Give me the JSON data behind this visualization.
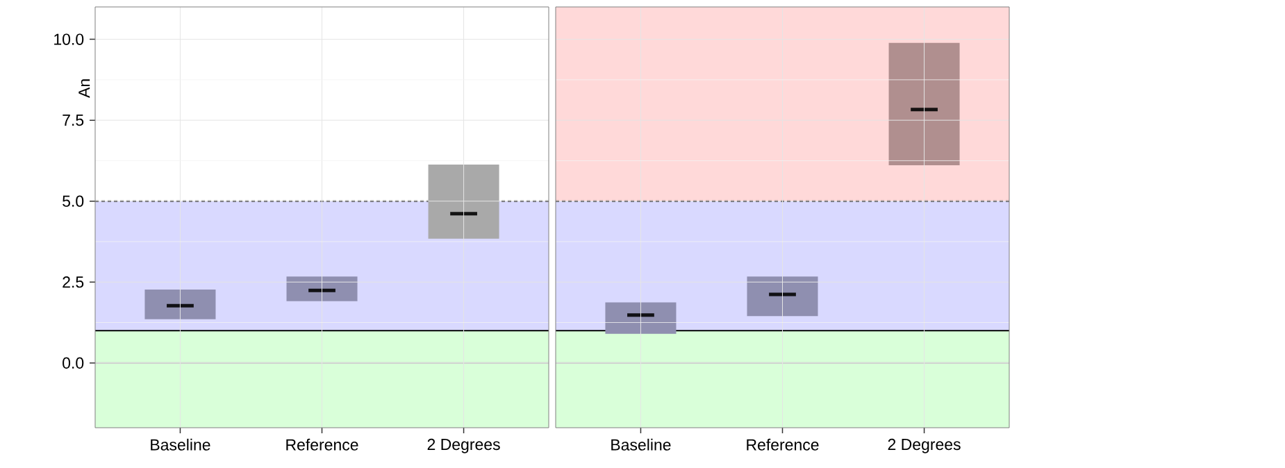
{
  "chart_data": [
    {
      "type": "box",
      "ylabel": "An",
      "categories": [
        "Baseline",
        "Reference",
        "2 Degrees"
      ],
      "ylim": [
        -2,
        11
      ],
      "yticks": [
        {
          "value": 0,
          "label": "0.0"
        },
        {
          "value": 2.5,
          "label": "2.5"
        },
        {
          "value": 5,
          "label": "5.0"
        },
        {
          "value": 7.5,
          "label": "7.5"
        },
        {
          "value": 10,
          "label": "10.0"
        }
      ],
      "grid": true,
      "series": [
        {
          "colors": [
            "#8f8fb0",
            "#8f8fb0",
            "#a9a9a9"
          ],
          "boxes": [
            {
              "low": 1.35,
              "q1": 1.35,
              "median": 1.77,
              "q3": 2.27,
              "high": 2.27
            },
            {
              "low": 1.91,
              "q1": 1.91,
              "median": 2.24,
              "q3": 2.67,
              "high": 2.67
            },
            {
              "low": 3.84,
              "q1": 3.84,
              "median": 4.61,
              "q3": 6.13,
              "high": 6.13
            }
          ]
        }
      ],
      "bands": [
        {
          "axis": "y",
          "from": -2,
          "to": 1,
          "color": "#d9ffd9"
        },
        {
          "axis": "y",
          "from": 1,
          "to": 5,
          "color": "#d9d9ff"
        }
      ],
      "ref_lines": [
        {
          "axis": "y",
          "value": 0,
          "color": "#bdbdbd"
        },
        {
          "axis": "y",
          "value": 1,
          "color": "#000000"
        },
        {
          "axis": "y",
          "value": 5,
          "color": "#000000",
          "line_style": "dashed"
        }
      ]
    },
    {
      "type": "box",
      "categories": [
        "Baseline",
        "Reference",
        "2 Degrees"
      ],
      "ylim": [
        -2,
        11
      ],
      "yticks": [
        0,
        2.5,
        5,
        7.5,
        10
      ],
      "tick_labels": "x",
      "grid": true,
      "series": [
        {
          "colors": [
            "#8f8fb0",
            "#8f8fb0",
            "#b08f8f"
          ],
          "boxes": [
            {
              "low": 0.9,
              "q1": 0.9,
              "median": 1.48,
              "q3": 1.87,
              "high": 1.87
            },
            {
              "low": 1.45,
              "q1": 1.45,
              "median": 2.12,
              "q3": 2.67,
              "high": 2.67
            },
            {
              "low": 6.11,
              "q1": 6.11,
              "median": 7.83,
              "q3": 9.89,
              "high": 9.89
            }
          ]
        }
      ],
      "bands": [
        {
          "axis": "y",
          "from": -2,
          "to": 1,
          "color": "#d9ffd9"
        },
        {
          "axis": "y",
          "from": 1,
          "to": 5,
          "color": "#d9d9ff"
        },
        {
          "axis": "y",
          "from": 5,
          "to": 11,
          "color": "#ffd9d9"
        }
      ],
      "ref_lines": [
        {
          "axis": "y",
          "value": 0,
          "color": "#bdbdbd"
        },
        {
          "axis": "y",
          "value": 1,
          "color": "#000000"
        },
        {
          "axis": "y",
          "value": 5,
          "color": "#000000",
          "line_style": "dashed"
        }
      ]
    }
  ]
}
